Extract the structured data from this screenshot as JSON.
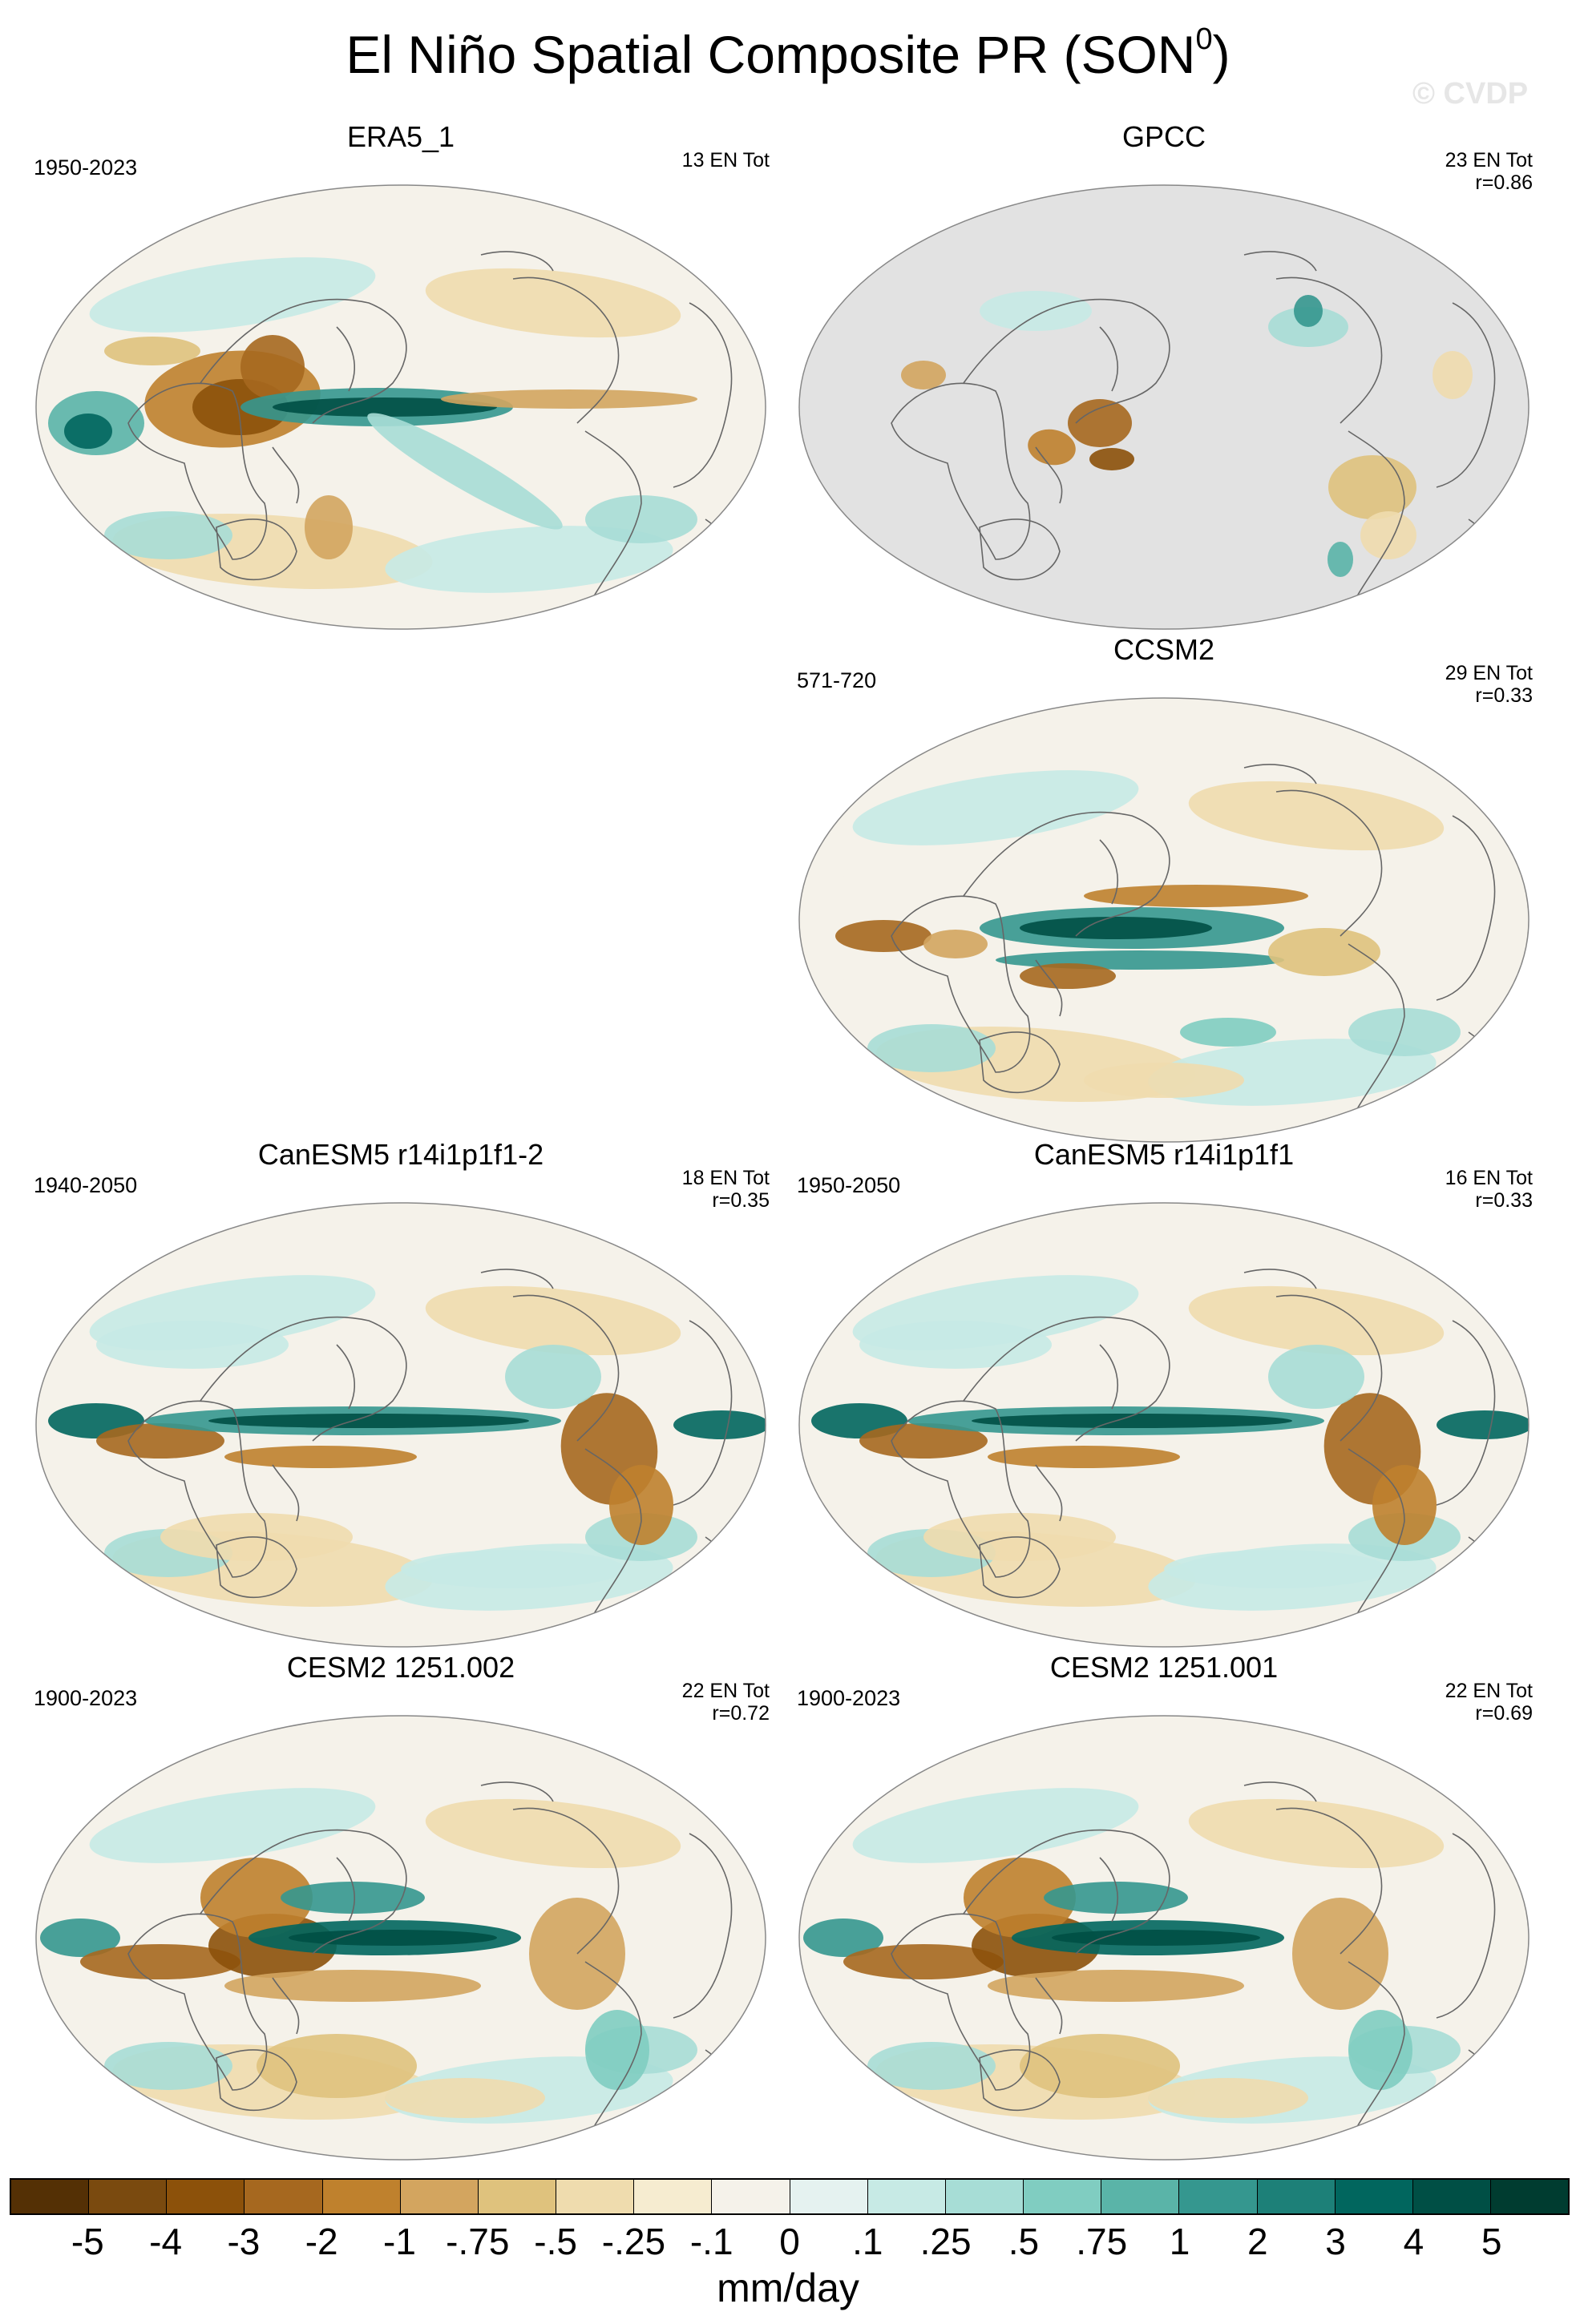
{
  "title": {
    "main": "El Niño Spatial Composite PR (SON",
    "sup": "0",
    "close": ")"
  },
  "watermark": "© CVDP",
  "panels": [
    {
      "id": "p1",
      "name": "ERA5_1",
      "years": "1950-2023",
      "info": [
        "13 EN Tot"
      ],
      "style": "obs"
    },
    {
      "id": "p2",
      "name": "GPCC",
      "years": "",
      "info": [
        "23 EN Tot",
        "r=0.86"
      ],
      "style": "land"
    },
    {
      "id": "p3",
      "name": "CCSM2",
      "years": "571-720",
      "info": [
        "29 EN Tot",
        "r=0.33"
      ],
      "style": "ccsm"
    },
    {
      "id": "p4",
      "name": "CanESM5 r14i1p1f1-2",
      "years": "1940-2050",
      "info": [
        "18 EN Tot",
        "r=0.35"
      ],
      "style": "can"
    },
    {
      "id": "p5",
      "name": "CanESM5 r14i1p1f1",
      "years": "1950-2050",
      "info": [
        "16 EN Tot",
        "r=0.33"
      ],
      "style": "can"
    },
    {
      "id": "p6",
      "name": "CESM2 1251.002",
      "years": "1900-2023",
      "info": [
        "22 EN Tot",
        "r=0.72"
      ],
      "style": "cesm"
    },
    {
      "id": "p7",
      "name": "CESM2 1251.001",
      "years": "1900-2023",
      "info": [
        "22 EN Tot",
        "r=0.69"
      ],
      "style": "cesm"
    }
  ],
  "colorbar": {
    "colors": [
      "#543005",
      "#7a4a0f",
      "#8c510a",
      "#a6681f",
      "#bf812d",
      "#d3a55f",
      "#dfc27d",
      "#efdcae",
      "#f6ecd0",
      "#f5f2ea",
      "#e5f2f0",
      "#c7eae5",
      "#a7ddd6",
      "#80cdc1",
      "#5ab4a8",
      "#35978f",
      "#1d8078",
      "#01665e",
      "#004f45",
      "#003c30"
    ],
    "ticks": [
      "-5",
      "-4",
      "-3",
      "-2",
      "-1",
      "-.75",
      "-.5",
      "-.25",
      "-.1",
      "0",
      ".1",
      ".25",
      ".5",
      ".75",
      "1",
      "2",
      "3",
      "4",
      "5"
    ],
    "units": "mm/day"
  }
}
